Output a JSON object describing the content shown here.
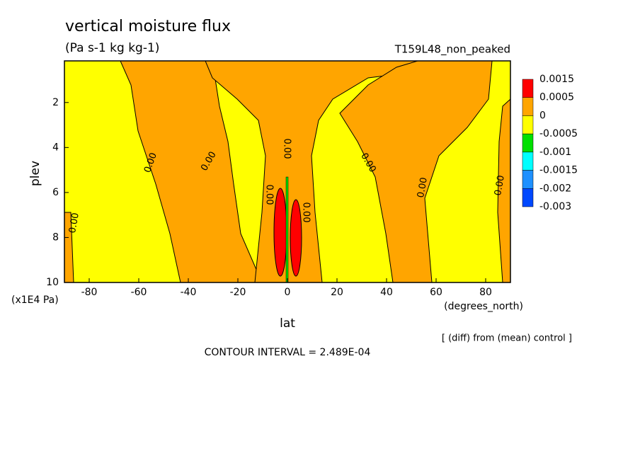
{
  "chart_data": {
    "type": "contour",
    "title": "vertical moisture flux",
    "subtitle": "(Pa s-1 kg kg-1)",
    "dataset": "T159L48_non_peaked",
    "x_label": "lat",
    "x_unit": "(degrees_north)",
    "y_label": "plev",
    "y_unit": "(x1E4 Pa)",
    "note": "[ (diff) from (mean) control ]",
    "contour_interval": "CONTOUR INTERVAL = 2.489E-04",
    "xlim": [
      -90,
      90
    ],
    "xticks": [
      -80,
      -60,
      -40,
      -20,
      0,
      20,
      40,
      60,
      80
    ],
    "ylim": [
      10,
      0.15
    ],
    "yticks": [
      2,
      4,
      6,
      8,
      10
    ],
    "levels": [
      0.0015,
      0.0005,
      0,
      -0.0005,
      -0.001,
      -0.0015,
      -0.002,
      -0.003
    ],
    "colors": [
      "#ff0000",
      "#ffa500",
      "#ffff00",
      "#00e000",
      "#00ffff",
      "#1e90ff",
      "#0048ff"
    ],
    "contour_labels": [
      {
        "value": 0,
        "label": "0.00"
      },
      {
        "value": 0,
        "label": "0.00"
      },
      {
        "value": 0,
        "label": "0.00"
      },
      {
        "value": 0,
        "label": "0.00"
      },
      {
        "value": 0,
        "label": "0.00"
      },
      {
        "value": 0,
        "label": "0.00"
      },
      {
        "value": 0,
        "label": "0.00"
      },
      {
        "value": 0,
        "label": "0.00"
      },
      {
        "value": 0,
        "label": "0.00"
      }
    ]
  }
}
